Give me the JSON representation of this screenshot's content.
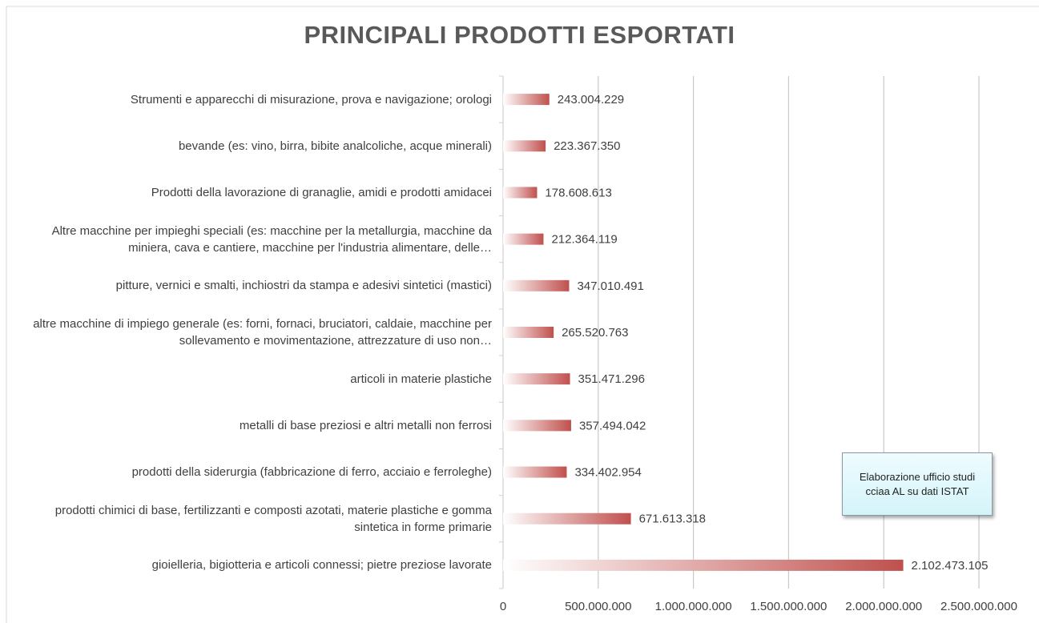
{
  "chart_data": {
    "type": "bar",
    "orientation": "horizontal",
    "title": "PRINCIPALI PRODOTTI ESPORTATI",
    "categories": [
      "Strumenti e apparecchi di misurazione, prova e navigazione; orologi",
      "bevande (es: vino, birra, bibite analcoliche, acque minerali)",
      "Prodotti della lavorazione di granaglie, amidi e prodotti amidacei",
      "Altre macchine per impieghi speciali (es: macchine per la metallurgia, macchine da miniera, cava e cantiere, macchine per l'industria alimentare, delle…",
      "pitture, vernici e smalti, inchiostri da stampa e adesivi sintetici (mastici)",
      "altre macchine di impiego generale (es: forni, fornaci, bruciatori, caldaie, macchine per sollevamento e movimentazione, attrezzature di uso non…",
      "articoli in materie plastiche",
      "metalli di base preziosi e altri metalli non ferrosi",
      "prodotti della siderurgia (fabbricazione di ferro, acciaio e ferroleghe)",
      "prodotti chimici di base, fertilizzanti e composti azotati, materie plastiche e gomma sintetica in forme primarie",
      "gioielleria, bigiotteria e articoli connessi; pietre preziose lavorate"
    ],
    "values": [
      243004229,
      223367350,
      178608613,
      212364119,
      347010491,
      265520763,
      351471296,
      357494042,
      334402954,
      671613318,
      2102473105
    ],
    "value_labels": [
      "243.004.229",
      "223.367.350",
      "178.608.613",
      "212.364.119",
      "347.010.491",
      "265.520.763",
      "351.471.296",
      "357.494.042",
      "334.402.954",
      "671.613.318",
      "2.102.473.105"
    ],
    "color": "#c0504d",
    "xlim": [
      0,
      2500000000
    ],
    "xticks": [
      0,
      {
        "value": 500000000,
        "label": "500.000.000"
      },
      {
        "value": 1000000000,
        "label": "1.000.000.000"
      },
      {
        "value": 1500000000,
        "label": "1.500.000.000"
      },
      {
        "value": 2000000000,
        "label": "2.000.000.000"
      },
      {
        "value": 2500000000,
        "label": "2.500.000.000"
      }
    ],
    "grid": true,
    "annotation": "Elaborazione ufficio studi cciaa AL su dati ISTAT"
  }
}
